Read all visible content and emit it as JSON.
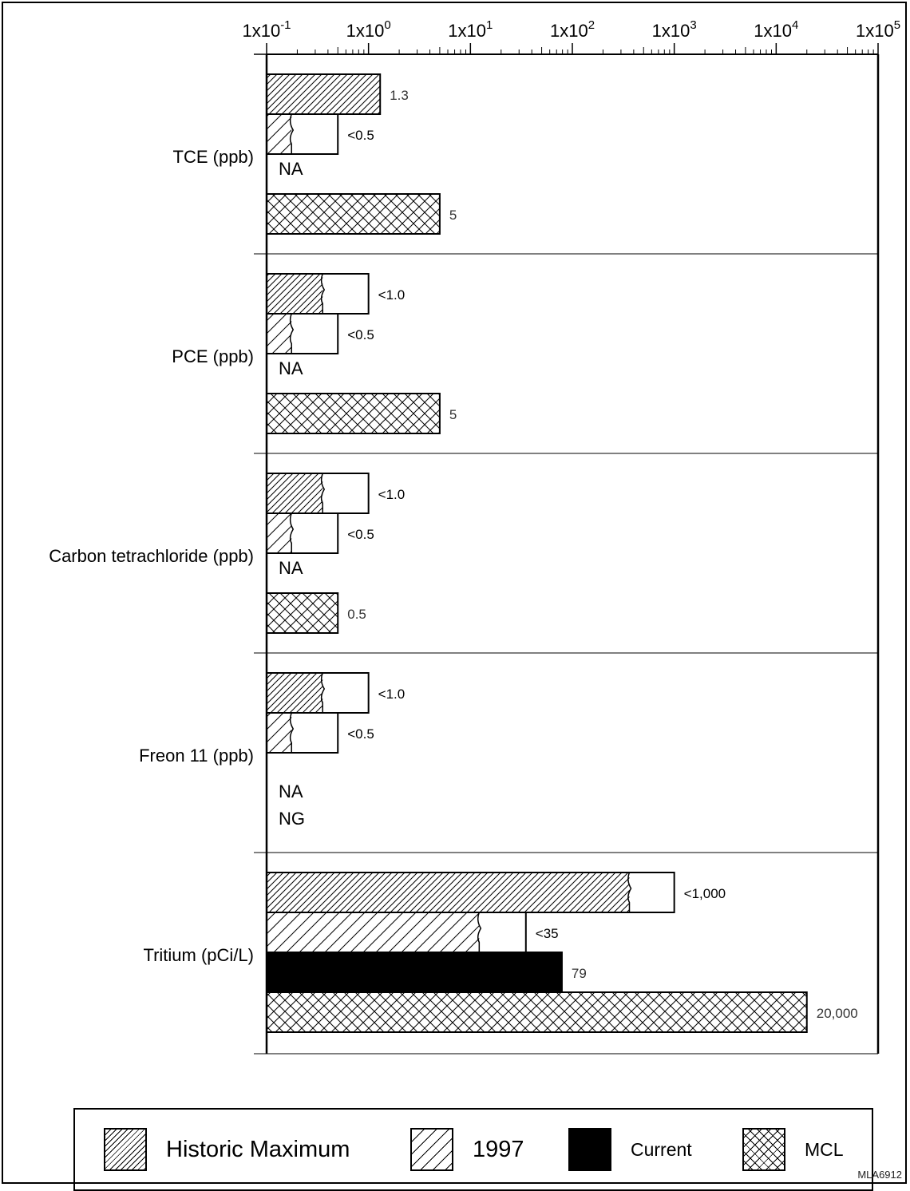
{
  "chart_data": {
    "type": "bar",
    "orientation": "horizontal",
    "x_scale": "log",
    "xlim": [
      0.1,
      100000
    ],
    "x_ticks": [
      {
        "base": "1x10",
        "exp": "-1"
      },
      {
        "base": "1x10",
        "exp": "0"
      },
      {
        "base": "1x10",
        "exp": "1"
      },
      {
        "base": "1x10",
        "exp": "2"
      },
      {
        "base": "1x10",
        "exp": "3"
      },
      {
        "base": "1x10",
        "exp": "4"
      },
      {
        "base": "1x10",
        "exp": "5"
      }
    ],
    "series": [
      {
        "name": "Historic Maximum",
        "pattern": "dense-hatch"
      },
      {
        "name": "1997",
        "pattern": "wide-hatch"
      },
      {
        "name": "Current",
        "pattern": "solid"
      },
      {
        "name": "MCL",
        "pattern": "crosshatch"
      }
    ],
    "categories": [
      {
        "label": "TCE (ppb)",
        "bars": [
          {
            "series": "Historic Maximum",
            "value": 1.3,
            "label": "1.3",
            "below_detection": false
          },
          {
            "series": "1997",
            "value": 0.5,
            "label": "<0.5",
            "below_detection": true
          },
          {
            "series": "Current",
            "value": null,
            "label": "NA"
          },
          {
            "series": "MCL",
            "value": 5,
            "label": "5",
            "below_detection": false
          }
        ]
      },
      {
        "label": "PCE (ppb)",
        "bars": [
          {
            "series": "Historic Maximum",
            "value": 1.0,
            "label": "<1.0",
            "below_detection": true
          },
          {
            "series": "1997",
            "value": 0.5,
            "label": "<0.5",
            "below_detection": true
          },
          {
            "series": "Current",
            "value": null,
            "label": "NA"
          },
          {
            "series": "MCL",
            "value": 5,
            "label": "5",
            "below_detection": false
          }
        ]
      },
      {
        "label": "Carbon tetrachloride (ppb)",
        "bars": [
          {
            "series": "Historic Maximum",
            "value": 1.0,
            "label": "<1.0",
            "below_detection": true
          },
          {
            "series": "1997",
            "value": 0.5,
            "label": "<0.5",
            "below_detection": true
          },
          {
            "series": "Current",
            "value": null,
            "label": "NA"
          },
          {
            "series": "MCL",
            "value": 0.5,
            "label": "0.5",
            "below_detection": false
          }
        ]
      },
      {
        "label": "Freon 11 (ppb)",
        "bars": [
          {
            "series": "Historic Maximum",
            "value": 1.0,
            "label": "<1.0",
            "below_detection": true
          },
          {
            "series": "1997",
            "value": 0.5,
            "label": "<0.5",
            "below_detection": true
          },
          {
            "series": "Current",
            "value": null,
            "label": "NA"
          },
          {
            "series": "MCL",
            "value": null,
            "label": "NG"
          }
        ]
      },
      {
        "label": "Tritium (pCi/L)",
        "bars": [
          {
            "series": "Historic Maximum",
            "value": 1000,
            "label": "<1,000",
            "below_detection": true
          },
          {
            "series": "1997",
            "value": 35,
            "label": "<35",
            "below_detection": true
          },
          {
            "series": "Current",
            "value": 79,
            "label": "79",
            "below_detection": false
          },
          {
            "series": "MCL",
            "value": 20000,
            "label": "20,000",
            "below_detection": false
          }
        ]
      }
    ],
    "grid": false,
    "legend_position": "bottom"
  },
  "legend": {
    "historic_label": "Historic Maximum",
    "y1997_label": "1997",
    "current_label": "Current",
    "mcl_label": "MCL"
  },
  "figure_code": "MLA6912"
}
